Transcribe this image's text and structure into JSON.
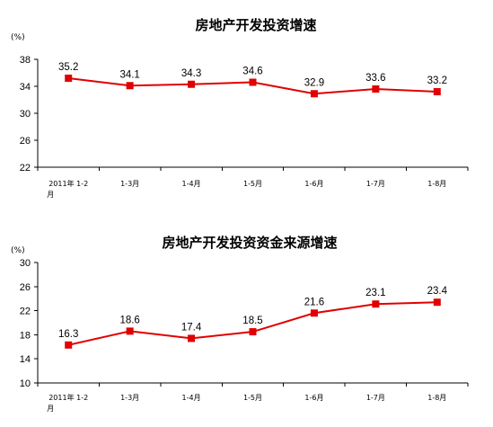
{
  "chart_data": [
    {
      "type": "line",
      "title": "房地产开发投资增速",
      "unit_label": "(%)",
      "categories": [
        "2011年 1-2月",
        "1-3月",
        "1-4月",
        "1-5月",
        "1-6月",
        "1-7月",
        "1-8月"
      ],
      "series": [
        {
          "values": [
            35.2,
            34.1,
            34.3,
            34.6,
            32.9,
            33.6,
            33.2
          ]
        }
      ],
      "ylim": [
        22,
        38
      ],
      "yticks": [
        22,
        26,
        30,
        34,
        38
      ],
      "grid": false,
      "colors": {
        "line": "#e00000",
        "marker": "#e00000"
      }
    },
    {
      "type": "line",
      "title": "房地产开发投资资金来源增速",
      "unit_label": "(%)",
      "categories": [
        "2011年 1-2月",
        "1-3月",
        "1-4月",
        "1-5月",
        "1-6月",
        "1-7月",
        "1-8月"
      ],
      "series": [
        {
          "values": [
            16.3,
            18.6,
            17.4,
            18.5,
            21.6,
            23.1,
            23.4
          ]
        }
      ],
      "ylim": [
        10,
        30
      ],
      "yticks": [
        10,
        14,
        18,
        22,
        26,
        30
      ],
      "grid": false,
      "colors": {
        "line": "#e00000",
        "marker": "#e00000"
      }
    }
  ]
}
